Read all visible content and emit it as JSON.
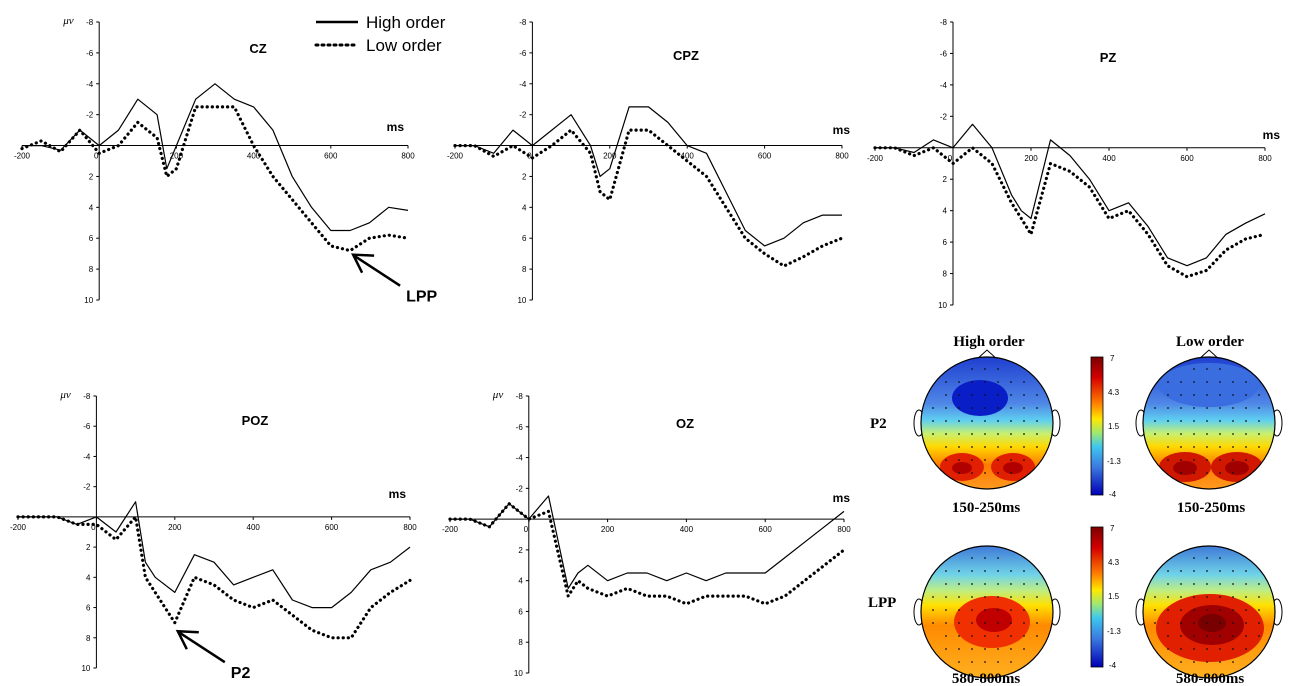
{
  "legend": {
    "items": [
      {
        "label": "High order",
        "style": "solid"
      },
      {
        "label": "Low order",
        "style": "dotted"
      }
    ]
  },
  "axis_common": {
    "unit_label": "μv",
    "x_unit": "ms",
    "x_ticks": [
      "-200",
      "0",
      "200",
      "400",
      "600",
      "800"
    ],
    "y_ticks": [
      "-8",
      "-6",
      "-4",
      "-2",
      "2",
      "4",
      "6",
      "8",
      "10"
    ]
  },
  "chart_data": [
    {
      "type": "line",
      "title": "CZ",
      "xlabel": "ms",
      "ylabel": "μv",
      "show_unit_label": true,
      "xlim": [
        -200,
        800
      ],
      "ylim": [
        -8,
        10
      ],
      "y_inverted": true,
      "x": [
        -200,
        -150,
        -100,
        -50,
        0,
        50,
        100,
        150,
        175,
        200,
        250,
        300,
        350,
        400,
        450,
        500,
        550,
        600,
        650,
        700,
        750,
        800
      ],
      "series": [
        {
          "name": "High order",
          "style": "solid",
          "values": [
            0,
            0,
            0.3,
            -1,
            0,
            -1,
            -3,
            -2,
            1.5,
            0,
            -3,
            -4,
            -3,
            -2.5,
            -1,
            2,
            4,
            5.5,
            5.5,
            5,
            4,
            4.2
          ]
        },
        {
          "name": "Low order",
          "style": "dotted",
          "values": [
            0.2,
            -0.3,
            0.4,
            -1,
            0.5,
            0,
            -1.5,
            -0.5,
            2,
            1.5,
            -2.5,
            -2.5,
            -2.5,
            0,
            2,
            3.5,
            5,
            6.5,
            6.8,
            6,
            5.8,
            6
          ]
        }
      ],
      "annotation": {
        "text": "LPP",
        "x": 650,
        "y": 7
      }
    },
    {
      "type": "line",
      "title": "CPZ",
      "xlabel": "ms",
      "ylabel": "μv",
      "show_unit_label": false,
      "xlim": [
        -200,
        800
      ],
      "ylim": [
        -8,
        10
      ],
      "y_inverted": true,
      "x": [
        -200,
        -150,
        -100,
        -50,
        0,
        50,
        100,
        150,
        175,
        200,
        250,
        300,
        350,
        400,
        450,
        500,
        550,
        600,
        650,
        700,
        750,
        800
      ],
      "series": [
        {
          "name": "High order",
          "style": "solid",
          "values": [
            0,
            0,
            0.5,
            -1,
            0,
            -1,
            -2,
            0,
            2,
            1.5,
            -2.5,
            -2.5,
            -1.5,
            0,
            0.5,
            3,
            5.5,
            6.5,
            6,
            5,
            4.5,
            4.5
          ]
        },
        {
          "name": "Low order",
          "style": "dotted",
          "values": [
            0,
            0,
            0.7,
            0,
            0.8,
            0,
            -1,
            0.5,
            3,
            3.5,
            -1,
            -1,
            0,
            1,
            2,
            4,
            6,
            7,
            7.8,
            7.2,
            6.5,
            6
          ]
        }
      ]
    },
    {
      "type": "line",
      "title": "PZ",
      "xlabel": "ms",
      "ylabel": "",
      "show_unit_label": false,
      "xlim": [
        -200,
        800
      ],
      "ylim": [
        -8,
        10
      ],
      "y_inverted": true,
      "x": [
        -200,
        -150,
        -100,
        -50,
        0,
        50,
        100,
        150,
        175,
        200,
        250,
        300,
        350,
        400,
        450,
        500,
        550,
        600,
        650,
        700,
        750,
        800
      ],
      "series": [
        {
          "name": "High order",
          "style": "solid",
          "values": [
            0,
            0,
            0.3,
            -0.5,
            0,
            -1.5,
            0,
            3,
            4,
            4.5,
            -0.5,
            0.5,
            2,
            4,
            3.5,
            5,
            7,
            7.5,
            7,
            5.5,
            4.8,
            4.2
          ]
        },
        {
          "name": "Low order",
          "style": "dotted",
          "values": [
            0,
            0,
            0.5,
            0,
            1,
            0,
            1,
            3.5,
            4.5,
            5.5,
            1,
            1.5,
            2.5,
            4.5,
            4,
            5.5,
            7.5,
            8.2,
            7.8,
            6.5,
            5.8,
            5.5
          ]
        }
      ]
    },
    {
      "type": "line",
      "title": "POZ",
      "xlabel": "ms",
      "ylabel": "μv",
      "show_unit_label": true,
      "xlim": [
        -200,
        800
      ],
      "ylim": [
        -8,
        10
      ],
      "y_inverted": true,
      "x": [
        -200,
        -150,
        -100,
        -50,
        0,
        50,
        100,
        125,
        150,
        200,
        250,
        300,
        350,
        400,
        450,
        500,
        550,
        600,
        650,
        700,
        750,
        800
      ],
      "series": [
        {
          "name": "High order",
          "style": "solid",
          "values": [
            0,
            0,
            0,
            0.5,
            0,
            1,
            -1,
            3,
            4,
            5,
            2.5,
            3,
            4.5,
            4,
            3.5,
            5.5,
            6,
            6,
            5,
            3.5,
            3,
            2
          ]
        },
        {
          "name": "Low order",
          "style": "dotted",
          "values": [
            0,
            0,
            0,
            0.5,
            0.5,
            1.5,
            0,
            4,
            5,
            7,
            4,
            4.5,
            5.5,
            6,
            5.5,
            6.5,
            7.5,
            8,
            8,
            6,
            5,
            4.2
          ]
        }
      ],
      "annotation": {
        "text": "P2",
        "x": 200,
        "y": 7.5
      }
    },
    {
      "type": "line",
      "title": "OZ",
      "xlabel": "ms",
      "ylabel": "μv",
      "show_unit_label": true,
      "xlim": [
        -200,
        800
      ],
      "ylim": [
        -8,
        10
      ],
      "y_inverted": true,
      "x": [
        -200,
        -150,
        -100,
        -50,
        0,
        50,
        100,
        125,
        150,
        200,
        250,
        300,
        350,
        400,
        450,
        500,
        550,
        600,
        650,
        700,
        750,
        800
      ],
      "series": [
        {
          "name": "High order",
          "style": "solid",
          "values": [
            0,
            0,
            0.5,
            -1,
            0,
            -1.5,
            4.5,
            3.5,
            3,
            4,
            3.5,
            3.5,
            4,
            3.5,
            4,
            3.5,
            3.5,
            3.5,
            2.5,
            1.5,
            0.5,
            -0.5
          ]
        },
        {
          "name": "Low order",
          "style": "dotted",
          "values": [
            0,
            0,
            0.5,
            -1,
            0,
            -0.5,
            5,
            4,
            4.5,
            5,
            4.5,
            5,
            5,
            5.5,
            5,
            5,
            5,
            5.5,
            5,
            4,
            3,
            2
          ]
        }
      ]
    }
  ],
  "topomaps": {
    "column_titles": [
      "High order",
      "Low order"
    ],
    "rows": [
      {
        "label": "P2",
        "time": "150-250ms",
        "colorbar_ticks": [
          "7",
          "4.3",
          "1.5",
          "-1.3",
          "-4"
        ]
      },
      {
        "label": "LPP",
        "time": "580-800ms",
        "colorbar_ticks": [
          "7",
          "4.3",
          "1.5",
          "-1.3",
          "-4"
        ]
      }
    ]
  }
}
